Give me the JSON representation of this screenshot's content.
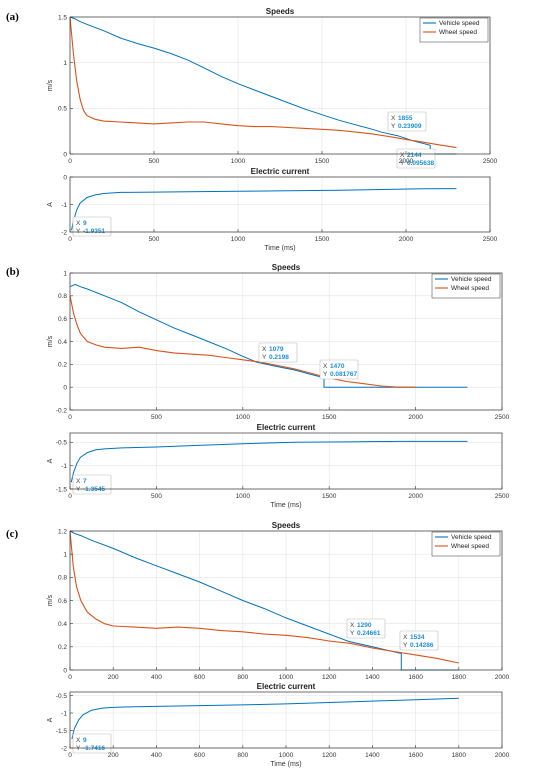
{
  "colors": {
    "vehicle": "#0072BD",
    "wheel": "#D95319",
    "datatip": "#1a8fd8",
    "grid": "#e3e3e3"
  },
  "chart_data": [
    {
      "panel": "(a)",
      "type": "line",
      "title": "Speeds",
      "xlabel": "",
      "ylabel": "m/s",
      "xlim": [
        0,
        2500
      ],
      "ylim": [
        0,
        1.5
      ],
      "xticks": [
        0,
        500,
        1000,
        1500,
        2000,
        2500
      ],
      "yticks": [
        0,
        0.5,
        1,
        1.5
      ],
      "grid": true,
      "legend": "top-right",
      "series": [
        {
          "name": "Vehicle speed",
          "x": [
            0,
            30,
            60,
            100,
            200,
            300,
            400,
            500,
            600,
            700,
            800,
            900,
            1000,
            1100,
            1200,
            1300,
            1400,
            1500,
            1600,
            1700,
            1800,
            1855,
            1950,
            2050,
            2144,
            2144,
            2300
          ],
          "y": [
            1.5,
            1.48,
            1.45,
            1.42,
            1.35,
            1.27,
            1.21,
            1.16,
            1.1,
            1.03,
            0.94,
            0.85,
            0.77,
            0.7,
            0.63,
            0.56,
            0.49,
            0.43,
            0.37,
            0.32,
            0.27,
            0.23909,
            0.2,
            0.14,
            0.095638,
            0,
            0
          ]
        },
        {
          "name": "Wheel speed",
          "x": [
            0,
            20,
            40,
            60,
            80,
            100,
            150,
            200,
            300,
            400,
            500,
            600,
            700,
            800,
            900,
            1000,
            1100,
            1200,
            1300,
            1400,
            1500,
            1600,
            1700,
            1800,
            1900,
            2000,
            2100,
            2200,
            2300
          ],
          "y": [
            1.5,
            1.1,
            0.8,
            0.6,
            0.48,
            0.42,
            0.38,
            0.36,
            0.35,
            0.34,
            0.33,
            0.34,
            0.35,
            0.35,
            0.33,
            0.31,
            0.3,
            0.3,
            0.29,
            0.28,
            0.27,
            0.26,
            0.24,
            0.22,
            0.19,
            0.16,
            0.13,
            0.1,
            0.07
          ]
        }
      ],
      "datatips": [
        {
          "x_label": "X",
          "x": "1855",
          "y_label": "Y",
          "y": "0.23909"
        },
        {
          "x_label": "X",
          "x": "2144",
          "y_label": "Y",
          "y": "0.095638"
        }
      ]
    },
    {
      "panel": "(a)",
      "type": "line",
      "title": "Electric current",
      "xlabel": "Time (ms)",
      "ylabel": "A",
      "xlim": [
        0,
        2500
      ],
      "ylim": [
        -2,
        0
      ],
      "xticks": [
        0,
        500,
        1000,
        1500,
        2000,
        2500
      ],
      "yticks": [
        -2,
        -1,
        0
      ],
      "grid": true,
      "series": [
        {
          "x": [
            9,
            20,
            40,
            60,
            100,
            150,
            200,
            300,
            500,
            700,
            1000,
            1300,
            1600,
            1900,
            2100,
            2300
          ],
          "y": [
            -1.9351,
            -1.6,
            -1.2,
            -0.95,
            -0.75,
            -0.65,
            -0.6,
            -0.56,
            -0.55,
            -0.54,
            -0.52,
            -0.5,
            -0.48,
            -0.45,
            -0.43,
            -0.42
          ]
        }
      ],
      "datatips": [
        {
          "x_label": "X",
          "x": "9",
          "y_label": "Y",
          "y": "-1.9351"
        }
      ]
    },
    {
      "panel": "(b)",
      "type": "line",
      "title": "Speeds",
      "xlabel": "",
      "ylabel": "m/s",
      "xlim": [
        0,
        2500
      ],
      "ylim": [
        -0.2,
        1
      ],
      "xticks": [
        0,
        500,
        1000,
        1500,
        2000,
        2500
      ],
      "yticks": [
        -0.2,
        0,
        0.2,
        0.4,
        0.6,
        0.8,
        1
      ],
      "grid": true,
      "legend": "top-right",
      "series": [
        {
          "name": "Vehicle speed",
          "x": [
            0,
            30,
            60,
            100,
            200,
            300,
            400,
            500,
            600,
            700,
            800,
            900,
            1000,
            1079,
            1200,
            1300,
            1400,
            1470,
            1470,
            2300
          ],
          "y": [
            0.88,
            0.9,
            0.88,
            0.86,
            0.8,
            0.74,
            0.66,
            0.59,
            0.52,
            0.46,
            0.4,
            0.34,
            0.27,
            0.2198,
            0.18,
            0.15,
            0.11,
            0.081767,
            0,
            0
          ]
        },
        {
          "name": "Wheel speed",
          "x": [
            0,
            20,
            40,
            60,
            100,
            150,
            200,
            300,
            400,
            500,
            600,
            700,
            800,
            900,
            1000,
            1100,
            1200,
            1300,
            1400,
            1500,
            1600,
            1700,
            1800,
            1900,
            2000
          ],
          "y": [
            0.8,
            0.65,
            0.55,
            0.47,
            0.4,
            0.37,
            0.35,
            0.34,
            0.35,
            0.32,
            0.3,
            0.29,
            0.28,
            0.26,
            0.24,
            0.22,
            0.19,
            0.16,
            0.12,
            0.08,
            0.05,
            0.03,
            0.01,
            0,
            0
          ]
        }
      ],
      "datatips": [
        {
          "x_label": "X",
          "x": "1079",
          "y_label": "Y",
          "y": "0.2198"
        },
        {
          "x_label": "X",
          "x": "1470",
          "y_label": "Y",
          "y": "0.081767"
        }
      ]
    },
    {
      "panel": "(b)",
      "type": "line",
      "title": "Electric current",
      "xlabel": "Time (ms)",
      "ylabel": "A",
      "xlim": [
        0,
        2500
      ],
      "ylim": [
        -1.5,
        -0.3
      ],
      "xticks": [
        0,
        500,
        1000,
        1500,
        2000,
        2500
      ],
      "yticks": [
        -1.5,
        -1,
        -0.5
      ],
      "grid": true,
      "series": [
        {
          "x": [
            7,
            20,
            40,
            60,
            100,
            150,
            200,
            300,
            500,
            700,
            1000,
            1300,
            1600,
            1900,
            2100,
            2300
          ],
          "y": [
            -1.3545,
            -1.15,
            -0.95,
            -0.82,
            -0.72,
            -0.66,
            -0.64,
            -0.62,
            -0.6,
            -0.57,
            -0.53,
            -0.5,
            -0.49,
            -0.48,
            -0.48,
            -0.48
          ]
        }
      ],
      "datatips": [
        {
          "x_label": "X",
          "x": "7",
          "y_label": "Y",
          "y": "-1.3545"
        }
      ]
    },
    {
      "panel": "(c)",
      "type": "line",
      "title": "Speeds",
      "xlabel": "",
      "ylabel": "m/s",
      "xlim": [
        0,
        2000
      ],
      "ylim": [
        0,
        1.2
      ],
      "xticks": [
        0,
        200,
        400,
        600,
        800,
        1000,
        1200,
        1400,
        1600,
        1800,
        2000
      ],
      "yticks": [
        0,
        0.2,
        0.4,
        0.6,
        0.8,
        1,
        1.2
      ],
      "grid": true,
      "legend": "top-right",
      "series": [
        {
          "name": "Vehicle speed",
          "x": [
            0,
            20,
            50,
            100,
            200,
            300,
            400,
            500,
            600,
            700,
            800,
            900,
            1000,
            1100,
            1200,
            1290,
            1400,
            1534,
            1534,
            1800
          ],
          "y": [
            1.2,
            1.18,
            1.16,
            1.12,
            1.05,
            0.97,
            0.9,
            0.83,
            0.76,
            0.68,
            0.6,
            0.53,
            0.45,
            0.38,
            0.31,
            0.24661,
            0.2,
            0.14286,
            0,
            0
          ]
        },
        {
          "name": "Wheel speed",
          "x": [
            0,
            15,
            30,
            50,
            80,
            120,
            160,
            200,
            300,
            400,
            500,
            600,
            700,
            800,
            900,
            1000,
            1100,
            1200,
            1300,
            1400,
            1500,
            1600,
            1700,
            1800
          ],
          "y": [
            1.2,
            0.9,
            0.72,
            0.6,
            0.5,
            0.44,
            0.4,
            0.38,
            0.37,
            0.36,
            0.37,
            0.36,
            0.34,
            0.33,
            0.31,
            0.3,
            0.28,
            0.25,
            0.23,
            0.19,
            0.16,
            0.13,
            0.1,
            0.06
          ]
        }
      ],
      "datatips": [
        {
          "x_label": "X",
          "x": "1290",
          "y_label": "Y",
          "y": "0.24661"
        },
        {
          "x_label": "X",
          "x": "1534",
          "y_label": "Y",
          "y": "0.14286"
        }
      ]
    },
    {
      "panel": "(c)",
      "type": "line",
      "title": "Electric current",
      "xlabel": "Time (ms)",
      "ylabel": "A",
      "xlim": [
        0,
        2000
      ],
      "ylim": [
        -2,
        -0.4
      ],
      "xticks": [
        0,
        200,
        400,
        600,
        800,
        1000,
        1200,
        1400,
        1600,
        1800,
        2000
      ],
      "yticks": [
        -2,
        -1.5,
        -1,
        -0.5
      ],
      "grid": true,
      "series": [
        {
          "x": [
            9,
            20,
            40,
            60,
            100,
            150,
            200,
            300,
            500,
            700,
            1000,
            1200,
            1400,
            1600,
            1800
          ],
          "y": [
            -1.7416,
            -1.45,
            -1.2,
            -1.05,
            -0.92,
            -0.86,
            -0.84,
            -0.82,
            -0.8,
            -0.78,
            -0.74,
            -0.7,
            -0.66,
            -0.62,
            -0.58
          ]
        }
      ],
      "datatips": [
        {
          "x_label": "X",
          "x": "9",
          "y_label": "Y",
          "y": "-1.7416"
        }
      ]
    }
  ]
}
